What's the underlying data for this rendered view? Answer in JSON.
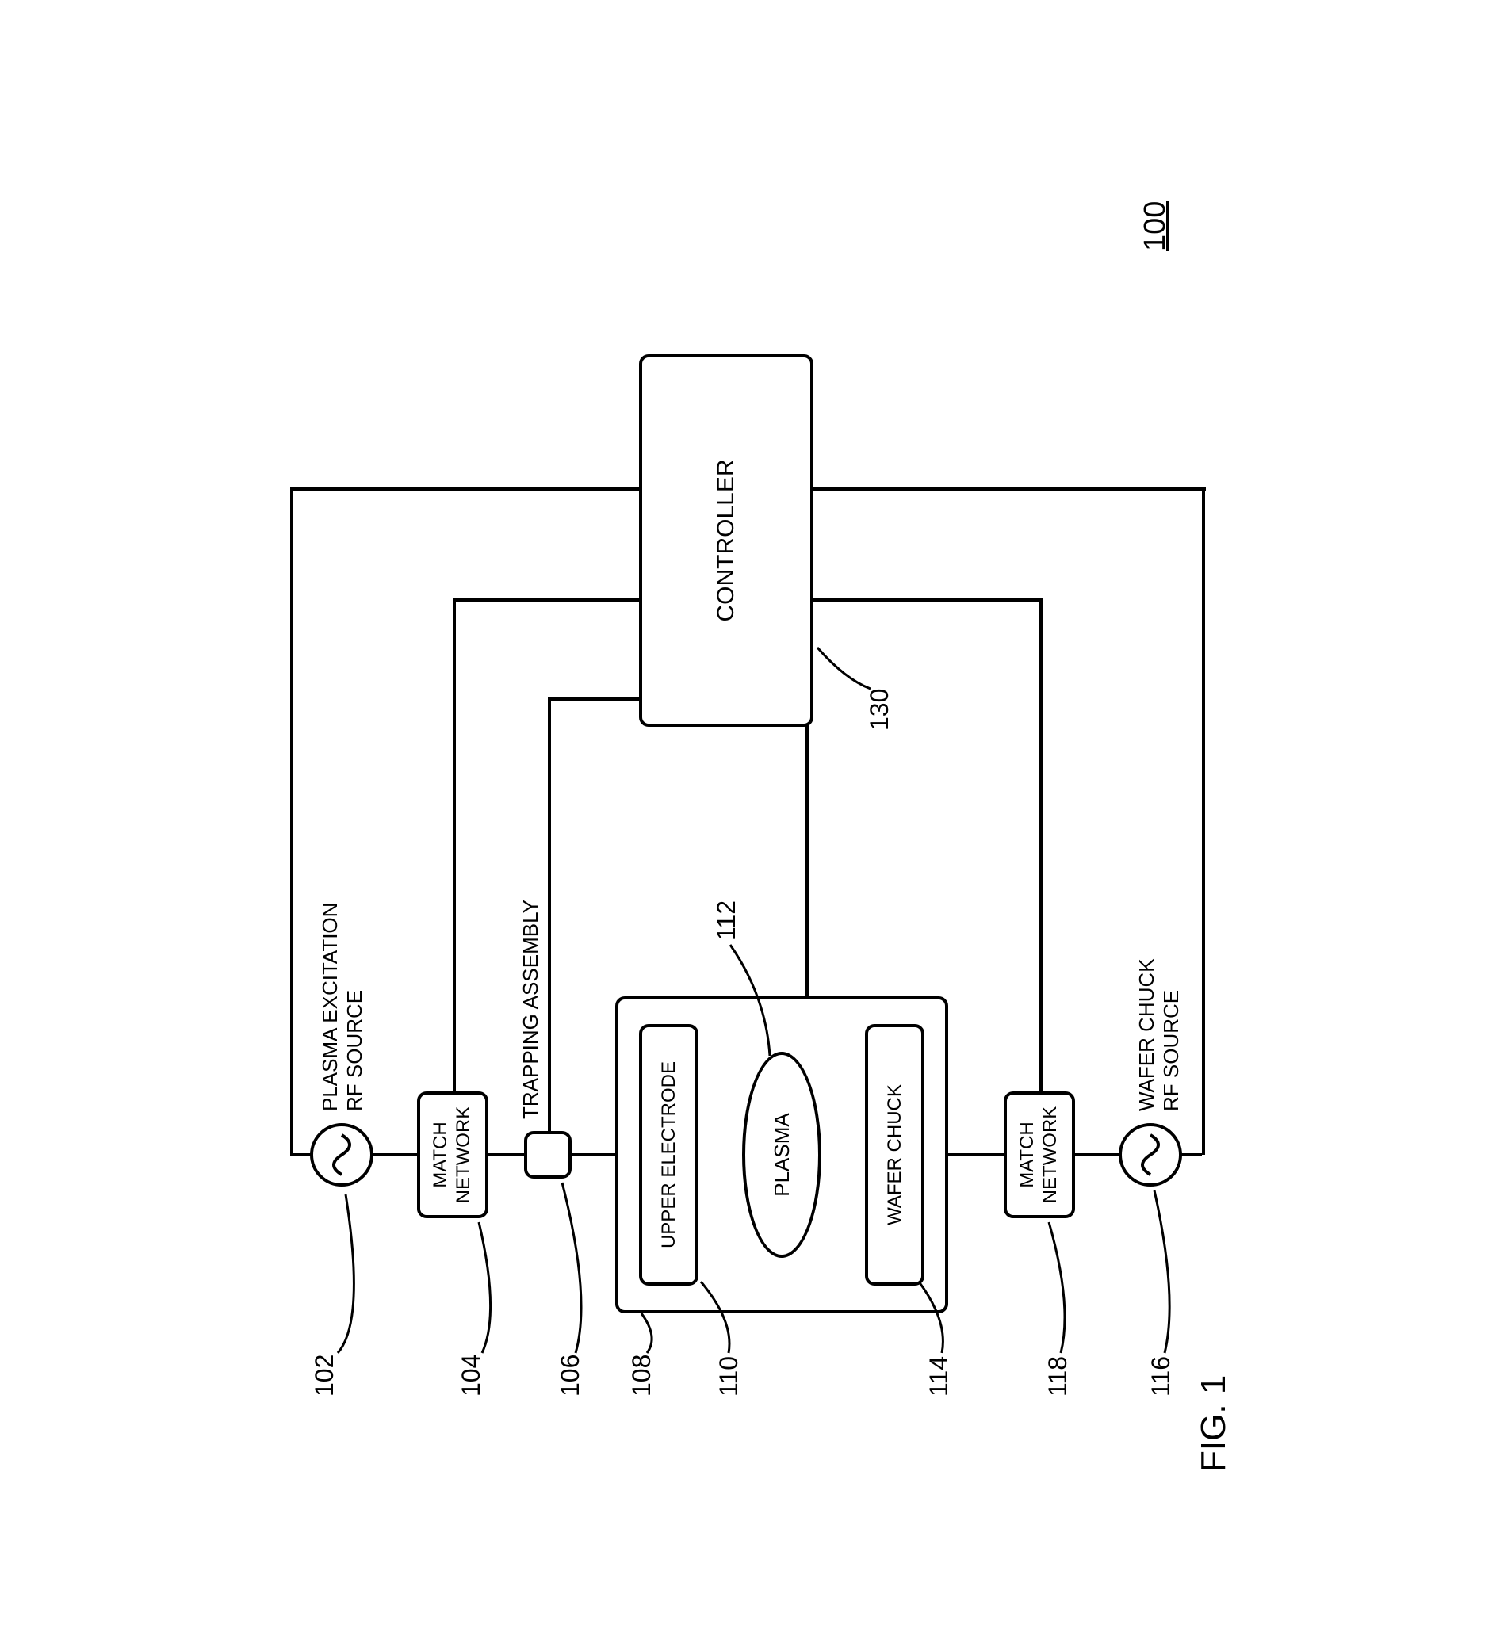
{
  "figure": {
    "label": "FIG. 1",
    "system_ref": "100"
  },
  "nodes": {
    "plasma_source": {
      "label": "PLASMA EXCITATION\nRF SOURCE",
      "ref": "102"
    },
    "match_top": {
      "label": "MATCH\nNETWORK",
      "ref": "104"
    },
    "trapping": {
      "label": "TRAPPING ASSEMBLY",
      "ref": "106"
    },
    "chamber": {
      "ref": "108"
    },
    "upper_electrode": {
      "label": "UPPER ELECTRODE",
      "ref": "110"
    },
    "plasma": {
      "label": "PLASMA",
      "ref": "112"
    },
    "wafer_chuck": {
      "label": "WAFER CHUCK",
      "ref": "114"
    },
    "match_bottom": {
      "label": "MATCH\nNETWORK",
      "ref": "118"
    },
    "chuck_source": {
      "label": "WAFER CHUCK\nRF SOURCE",
      "ref": "116"
    },
    "controller": {
      "label": "CONTROLLER",
      "ref": "130"
    }
  },
  "style": {
    "bg": "#ffffff",
    "stroke": "#000000",
    "stroke_width": 4,
    "corner_radius": 12,
    "font_family": "Arial, Helvetica, sans-serif",
    "label_fontsize": 26,
    "ref_fontsize": 32,
    "fig_fontsize": 44
  }
}
